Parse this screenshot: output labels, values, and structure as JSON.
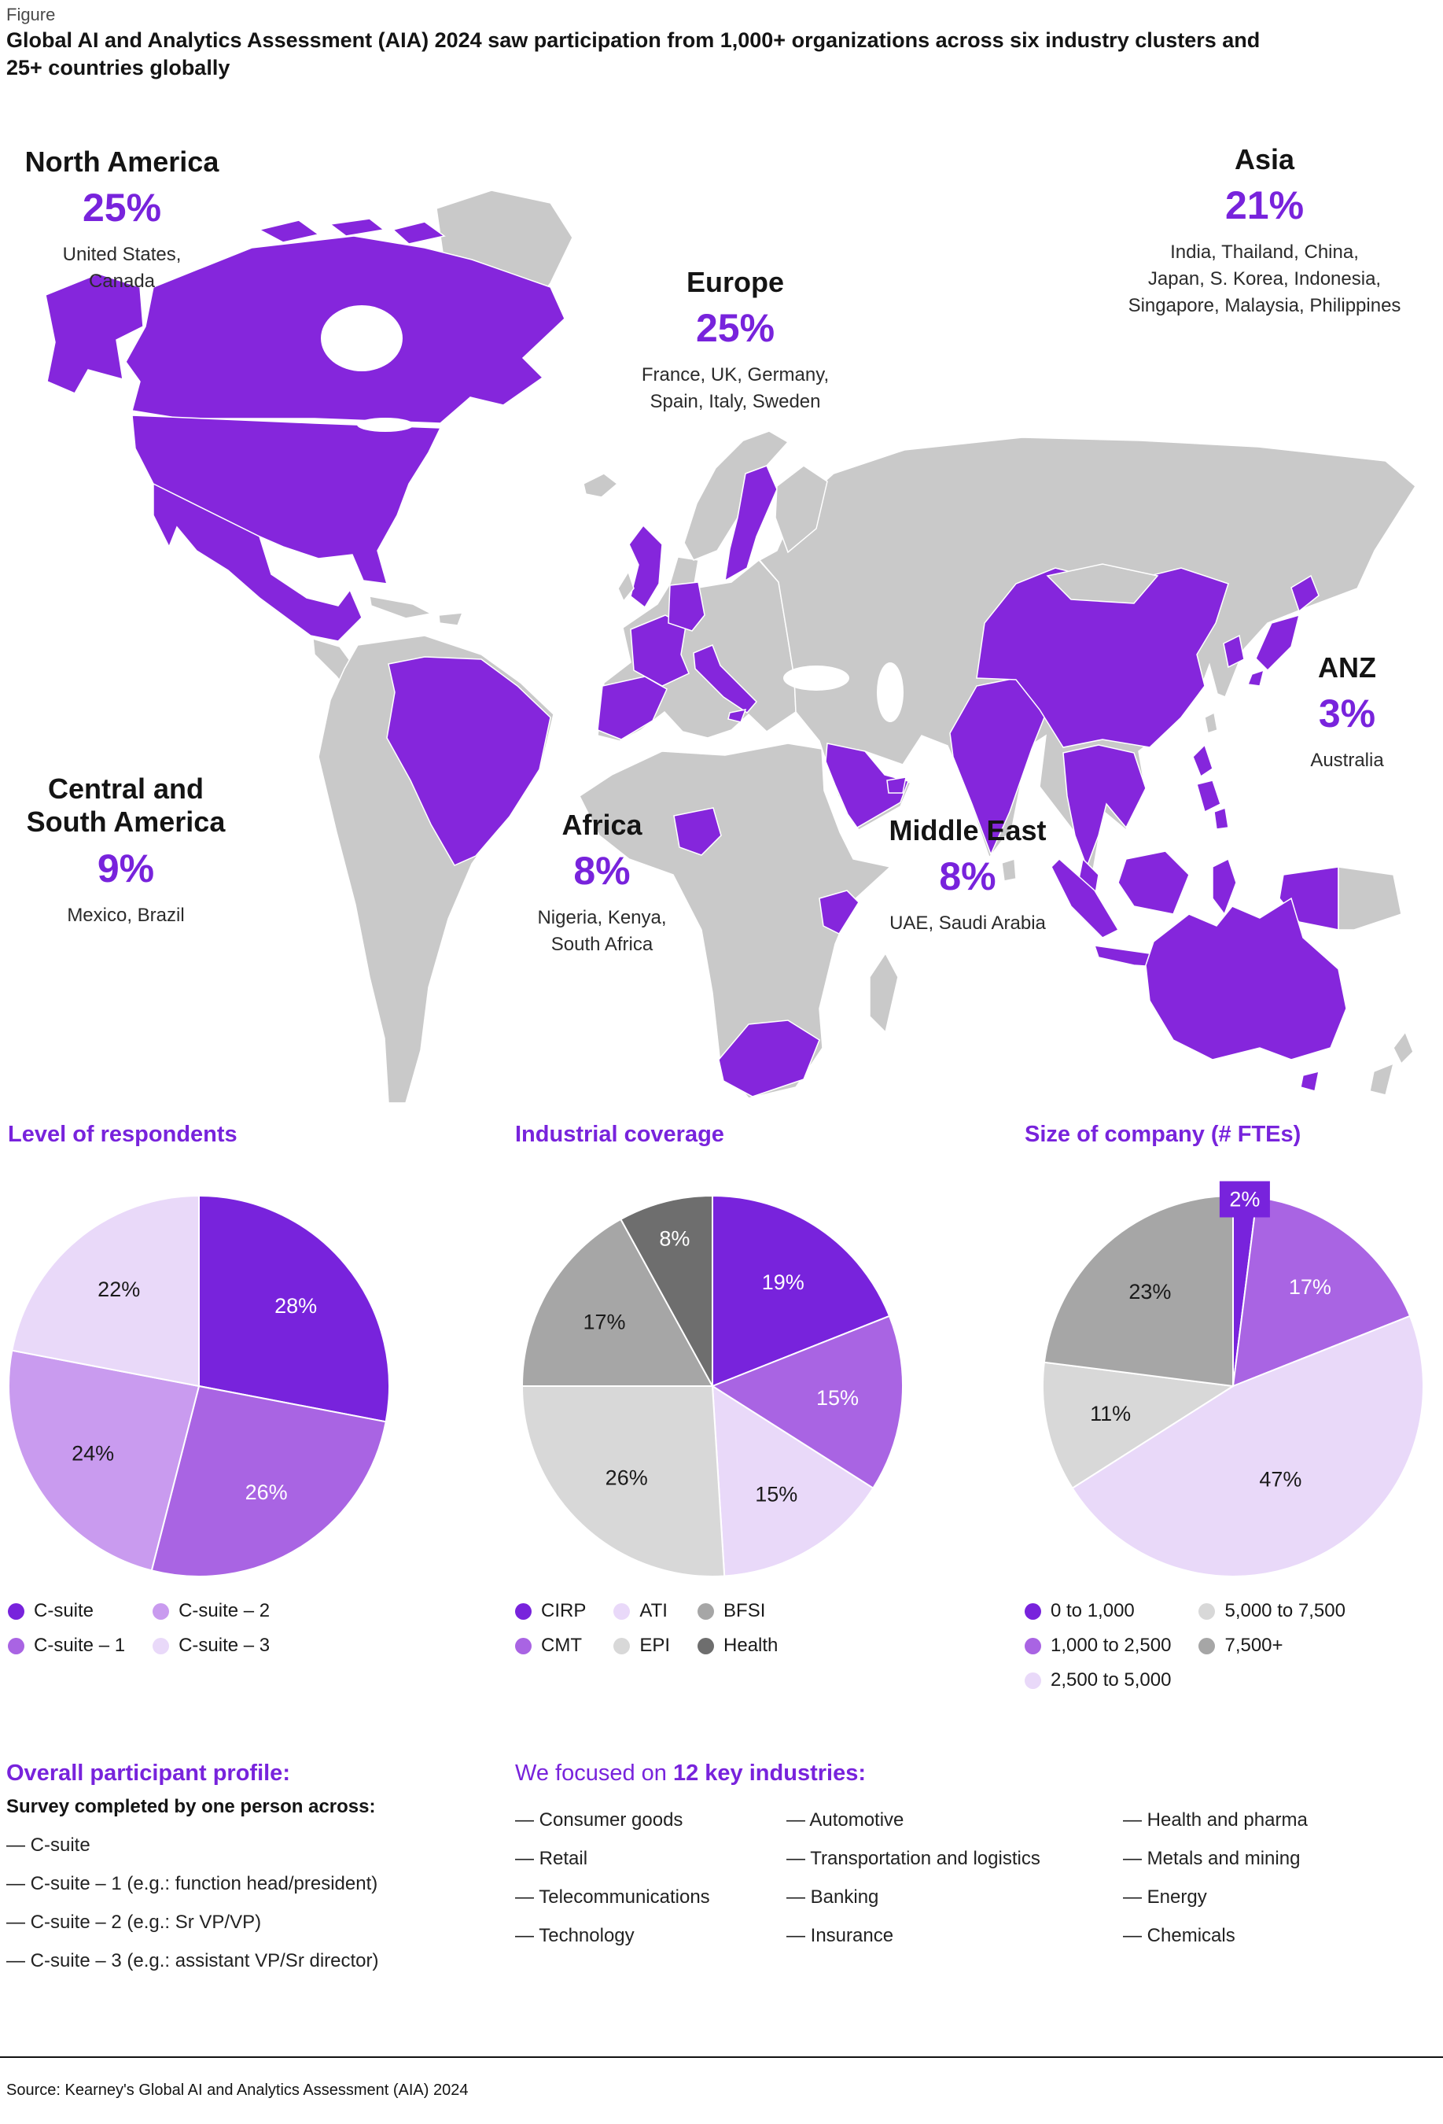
{
  "figure": {
    "eyebrow": "Figure",
    "title": "Global AI and Analytics Assessment (AIA) 2024 saw participation from 1,000+ organizations across six industry clusters and 25+ countries globally",
    "source": "Source: Kearney's Global AI and Analytics Assessment (AIA) 2024"
  },
  "colors": {
    "accent_purple": "#7823dc",
    "map_purple": "#8526dc",
    "map_gray": "#c9c9c9"
  },
  "map": {
    "regions": [
      {
        "id": "north-america",
        "name_lines": [
          "North America"
        ],
        "pct": "25%",
        "countries": [
          "United States,",
          "Canada"
        ]
      },
      {
        "id": "europe",
        "name_lines": [
          "Europe"
        ],
        "pct": "25%",
        "countries": [
          "France, UK, Germany,",
          "Spain, Italy, Sweden"
        ]
      },
      {
        "id": "asia",
        "name_lines": [
          "Asia"
        ],
        "pct": "21%",
        "countries": [
          "India, Thailand, China,",
          "Japan, S. Korea, Indonesia,",
          "Singapore, Malaysia, Philippines"
        ]
      },
      {
        "id": "anz",
        "name_lines": [
          "ANZ"
        ],
        "pct": "3%",
        "countries": [
          "Australia"
        ]
      },
      {
        "id": "central-south-america",
        "name_lines": [
          "Central and",
          "South America"
        ],
        "pct": "9%",
        "countries": [
          "Mexico, Brazil"
        ]
      },
      {
        "id": "africa",
        "name_lines": [
          "Africa"
        ],
        "pct": "8%",
        "countries": [
          "Nigeria, Kenya,",
          "South Africa"
        ]
      },
      {
        "id": "middle-east",
        "name_lines": [
          "Middle East"
        ],
        "pct": "8%",
        "countries": [
          "UAE, Saudi Arabia"
        ]
      }
    ]
  },
  "chart_data": [
    {
      "type": "pie",
      "title": "Level of respondents",
      "legend_columns": 2,
      "slices": [
        {
          "label": "C-suite",
          "value": 28,
          "color": "#7823dc",
          "label_color": "#ffffff"
        },
        {
          "label": "C-suite – 1",
          "value": 26,
          "color": "#a964e3",
          "label_color": "#ffffff"
        },
        {
          "label": "C-suite – 2",
          "value": 24,
          "color": "#c99bef",
          "label_color": "#1a1a1a"
        },
        {
          "label": "C-suite – 3",
          "value": 22,
          "color": "#e9d9f9",
          "label_color": "#1a1a1a"
        }
      ]
    },
    {
      "type": "pie",
      "title": "Industrial coverage",
      "legend_columns": 3,
      "slices": [
        {
          "label": "CIRP",
          "value": 19,
          "color": "#7823dc",
          "label_color": "#ffffff"
        },
        {
          "label": "CMT",
          "value": 15,
          "color": "#a964e3",
          "label_color": "#ffffff"
        },
        {
          "label": "ATI",
          "value": 15,
          "color": "#e9d9f9",
          "label_color": "#1a1a1a"
        },
        {
          "label": "EPI",
          "value": 26,
          "color": "#d8d8d8",
          "label_color": "#1a1a1a"
        },
        {
          "label": "BFSI",
          "value": 17,
          "color": "#a6a6a6",
          "label_color": "#1a1a1a"
        },
        {
          "label": "Health",
          "value": 8,
          "color": "#6e6e6e",
          "label_color": "#ffffff"
        }
      ]
    },
    {
      "type": "pie",
      "title": "Size of company (# FTEs)",
      "legend_columns": 2,
      "slices": [
        {
          "label": "0 to 1,000",
          "value": 2,
          "color": "#7823dc",
          "label_color": "#ffffff",
          "callout": true
        },
        {
          "label": "1,000 to 2,500",
          "value": 17,
          "color": "#a964e3",
          "label_color": "#ffffff"
        },
        {
          "label": "2,500 to 5,000",
          "value": 47,
          "color": "#e9d9f9",
          "label_color": "#1a1a1a"
        },
        {
          "label": "5,000 to 7,500",
          "value": 11,
          "color": "#d8d8d8",
          "label_color": "#1a1a1a"
        },
        {
          "label": "7,500+",
          "value": 23,
          "color": "#a6a6a6",
          "label_color": "#1a1a1a"
        }
      ]
    }
  ],
  "participant_profile": {
    "heading": "Overall participant profile:",
    "subheading": "Survey completed by one person across:",
    "items": [
      "C-suite",
      "C-suite – 1 (e.g.: function head/president)",
      "C-suite – 2 (e.g.: Sr VP/VP)",
      "C-suite – 3 (e.g.: assistant VP/Sr director)"
    ]
  },
  "industries": {
    "heading_prefix": "We focused on ",
    "heading_bold": "12 key industries:",
    "columns": [
      [
        "Consumer goods",
        "Retail",
        "Telecommunications",
        "Technology"
      ],
      [
        "Automotive",
        "Transportation and logistics",
        "Banking",
        "Insurance"
      ],
      [
        "Health and pharma",
        "Metals and mining",
        "Energy",
        "Chemicals"
      ]
    ]
  }
}
